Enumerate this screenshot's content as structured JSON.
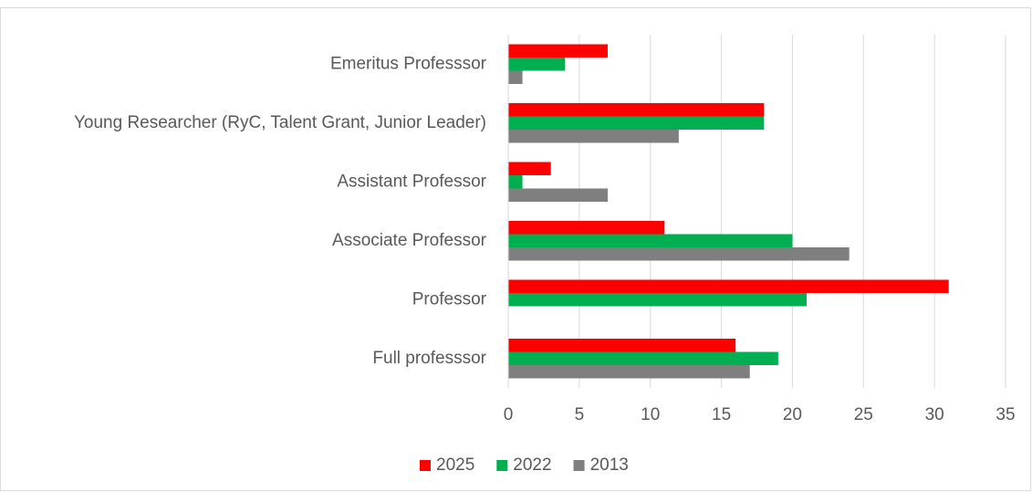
{
  "chart_data": {
    "type": "bar",
    "orientation": "horizontal",
    "categories": [
      "Emeritus Professsor",
      "Young Researcher (RyC, Talent Grant, Junior Leader)",
      "Assistant Professor",
      "Associate Professor",
      "Professor",
      "Full professsor"
    ],
    "series": [
      {
        "name": "2025",
        "color": "#ff0000",
        "values": [
          7,
          18,
          3,
          11,
          31,
          16
        ]
      },
      {
        "name": "2022",
        "color": "#00b050",
        "values": [
          4,
          18,
          1,
          20,
          21,
          19
        ]
      },
      {
        "name": "2013",
        "color": "#7f7f7f",
        "values": [
          1,
          12,
          7,
          24,
          0,
          17
        ]
      }
    ],
    "xlim": [
      0,
      35
    ],
    "xticks": [
      0,
      5,
      10,
      15,
      20,
      25,
      30,
      35
    ],
    "grid": true,
    "legend": "bottom"
  }
}
